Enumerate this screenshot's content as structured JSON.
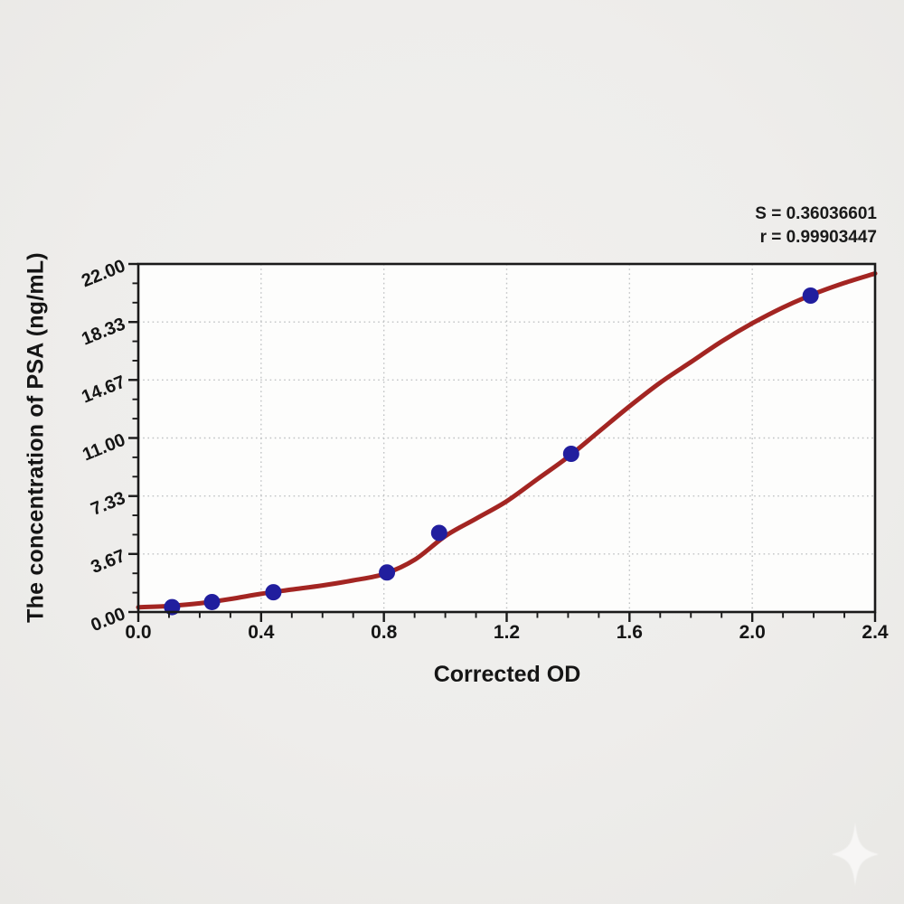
{
  "page": {
    "background": "#eeedeb",
    "watermark_icon": "sparkle"
  },
  "annotation": {
    "s_label": "S = 0.36036601",
    "r_label": "r = 0.99903447"
  },
  "chart_data": {
    "type": "scatter",
    "title": "",
    "xlabel": "Corrected OD",
    "ylabel": "The concentration of PSA (ng/mL)",
    "xlim": [
      0.0,
      2.4
    ],
    "ylim": [
      0.0,
      22.0
    ],
    "x_tick_labels": [
      "0.0",
      "0.4",
      "0.8",
      "1.2",
      "1.6",
      "2.0",
      "2.4"
    ],
    "y_tick_labels": [
      "0.00",
      "3.67",
      "7.33",
      "11.00",
      "14.67",
      "18.33",
      "22.00"
    ],
    "x_minor_divisions": 4,
    "y_minor_divisions": 3,
    "grid": "dotted at major ticks",
    "legend": "none",
    "stats": {
      "S": "0.36036601",
      "r": "0.99903447"
    },
    "series": [
      {
        "name": "standard-points",
        "type": "scatter",
        "color": "#211e9e",
        "points": [
          [
            0.11,
            0.31
          ],
          [
            0.24,
            0.63
          ],
          [
            0.44,
            1.25
          ],
          [
            0.81,
            2.5
          ],
          [
            0.98,
            5.0
          ],
          [
            1.41,
            10.0
          ],
          [
            2.19,
            20.0
          ]
        ]
      },
      {
        "name": "fit-curve",
        "type": "line",
        "color": "#a32522",
        "points": [
          [
            0.0,
            0.3
          ],
          [
            0.1,
            0.38
          ],
          [
            0.2,
            0.55
          ],
          [
            0.3,
            0.82
          ],
          [
            0.4,
            1.15
          ],
          [
            0.5,
            1.42
          ],
          [
            0.6,
            1.68
          ],
          [
            0.7,
            2.0
          ],
          [
            0.8,
            2.4
          ],
          [
            0.9,
            3.3
          ],
          [
            1.0,
            4.8
          ],
          [
            1.1,
            5.9
          ],
          [
            1.2,
            7.0
          ],
          [
            1.3,
            8.4
          ],
          [
            1.4,
            9.8
          ],
          [
            1.5,
            11.4
          ],
          [
            1.6,
            13.0
          ],
          [
            1.7,
            14.5
          ],
          [
            1.8,
            15.8
          ],
          [
            1.9,
            17.1
          ],
          [
            2.0,
            18.25
          ],
          [
            2.1,
            19.25
          ],
          [
            2.2,
            20.1
          ],
          [
            2.3,
            20.8
          ],
          [
            2.4,
            21.4
          ]
        ]
      }
    ],
    "colors": {
      "curve": "#a32522",
      "point": "#211e9e",
      "grid": "#c0c2c4",
      "axis": "#1a1a1a",
      "plot_bg": "#fdfdfc"
    }
  }
}
